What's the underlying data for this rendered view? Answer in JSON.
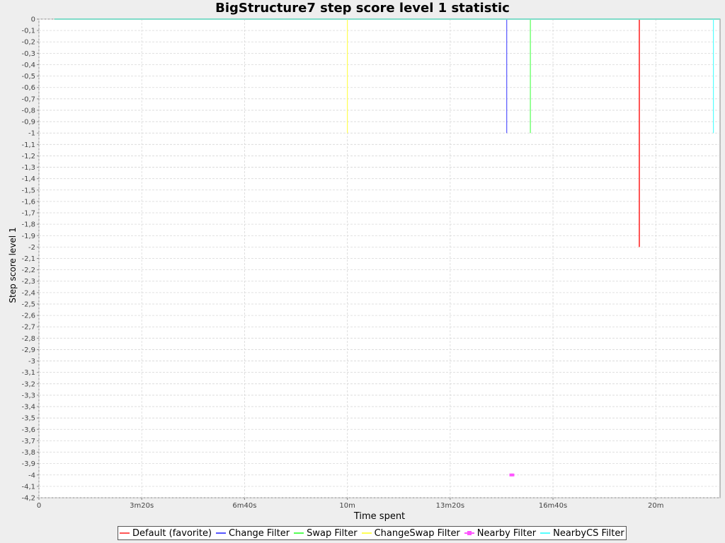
{
  "chart_data": {
    "type": "line",
    "title": "BigStructure7 step score level 1 statistic",
    "xlabel": "Time spent",
    "ylabel": "Step score level 1",
    "xlim": [
      0,
      1325
    ],
    "ylim": [
      -4.2,
      0
    ],
    "grid": true,
    "legend_position": "bottom",
    "x_ticks": [
      {
        "value": 0,
        "label": "0"
      },
      {
        "value": 200,
        "label": "3m20s"
      },
      {
        "value": 400,
        "label": "6m40s"
      },
      {
        "value": 600,
        "label": "10m"
      },
      {
        "value": 800,
        "label": "13m20s"
      },
      {
        "value": 1000,
        "label": "16m40s"
      },
      {
        "value": 1200,
        "label": "20m"
      }
    ],
    "y_ticks": [
      {
        "value": 0,
        "label": "0"
      },
      {
        "value": -0.1,
        "label": "-0,1"
      },
      {
        "value": -0.2,
        "label": "-0,2"
      },
      {
        "value": -0.3,
        "label": "-0,3"
      },
      {
        "value": -0.4,
        "label": "-0,4"
      },
      {
        "value": -0.5,
        "label": "-0,5"
      },
      {
        "value": -0.6,
        "label": "-0,6"
      },
      {
        "value": -0.7,
        "label": "-0,7"
      },
      {
        "value": -0.8,
        "label": "-0,8"
      },
      {
        "value": -0.9,
        "label": "-0,9"
      },
      {
        "value": -1.0,
        "label": "-1"
      },
      {
        "value": -1.1,
        "label": "-1,1"
      },
      {
        "value": -1.2,
        "label": "-1,2"
      },
      {
        "value": -1.3,
        "label": "-1,3"
      },
      {
        "value": -1.4,
        "label": "-1,4"
      },
      {
        "value": -1.5,
        "label": "-1,5"
      },
      {
        "value": -1.6,
        "label": "-1,6"
      },
      {
        "value": -1.7,
        "label": "-1,7"
      },
      {
        "value": -1.8,
        "label": "-1,8"
      },
      {
        "value": -1.9,
        "label": "-1,9"
      },
      {
        "value": -2.0,
        "label": "-2"
      },
      {
        "value": -2.1,
        "label": "-2,1"
      },
      {
        "value": -2.2,
        "label": "-2,2"
      },
      {
        "value": -2.3,
        "label": "-2,3"
      },
      {
        "value": -2.4,
        "label": "-2,4"
      },
      {
        "value": -2.5,
        "label": "-2,5"
      },
      {
        "value": -2.6,
        "label": "-2,6"
      },
      {
        "value": -2.7,
        "label": "-2,7"
      },
      {
        "value": -2.8,
        "label": "-2,8"
      },
      {
        "value": -2.9,
        "label": "-2,9"
      },
      {
        "value": -3.0,
        "label": "-3"
      },
      {
        "value": -3.1,
        "label": "-3,1"
      },
      {
        "value": -3.2,
        "label": "-3,2"
      },
      {
        "value": -3.3,
        "label": "-3,3"
      },
      {
        "value": -3.4,
        "label": "-3,4"
      },
      {
        "value": -3.5,
        "label": "-3,5"
      },
      {
        "value": -3.6,
        "label": "-3,6"
      },
      {
        "value": -3.7,
        "label": "-3,7"
      },
      {
        "value": -3.8,
        "label": "-3,8"
      },
      {
        "value": -3.9,
        "label": "-3,9"
      },
      {
        "value": -4.0,
        "label": "-4"
      },
      {
        "value": -4.1,
        "label": "-4,1"
      },
      {
        "value": -4.2,
        "label": "-4,2"
      }
    ],
    "series": [
      {
        "name": "Default (favorite)",
        "color": "#ff5555",
        "marker": "none",
        "points": [
          [
            30,
            0
          ],
          [
            1168,
            0
          ],
          [
            1168,
            -2
          ],
          [
            1168,
            0
          ],
          [
            1325,
            0
          ]
        ]
      },
      {
        "name": "Change Filter",
        "color": "#5555ff",
        "marker": "none",
        "points": [
          [
            30,
            0
          ],
          [
            910,
            0
          ],
          [
            910,
            -1
          ],
          [
            910,
            0
          ],
          [
            1325,
            0
          ]
        ]
      },
      {
        "name": "Swap Filter",
        "color": "#55ff55",
        "marker": "none",
        "points": [
          [
            30,
            0
          ],
          [
            956,
            0
          ],
          [
            956,
            -1
          ],
          [
            956,
            0
          ],
          [
            1325,
            0
          ]
        ]
      },
      {
        "name": "ChangeSwap Filter",
        "color": "#ffff55",
        "marker": "none",
        "points": [
          [
            30,
            0
          ],
          [
            600,
            0
          ],
          [
            600,
            -1
          ],
          [
            600,
            0
          ],
          [
            1325,
            0
          ]
        ]
      },
      {
        "name": "Nearby Filter",
        "color": "#ff55ff",
        "marker": "square",
        "points": [
          [
            918,
            -4
          ],
          [
            922,
            -4
          ]
        ]
      },
      {
        "name": "NearbyCS Filter",
        "color": "#55ffff",
        "marker": "none",
        "points": [
          [
            30,
            0
          ],
          [
            1312,
            0
          ],
          [
            1312,
            -1
          ],
          [
            1312,
            0
          ],
          [
            1325,
            0
          ]
        ]
      }
    ]
  }
}
